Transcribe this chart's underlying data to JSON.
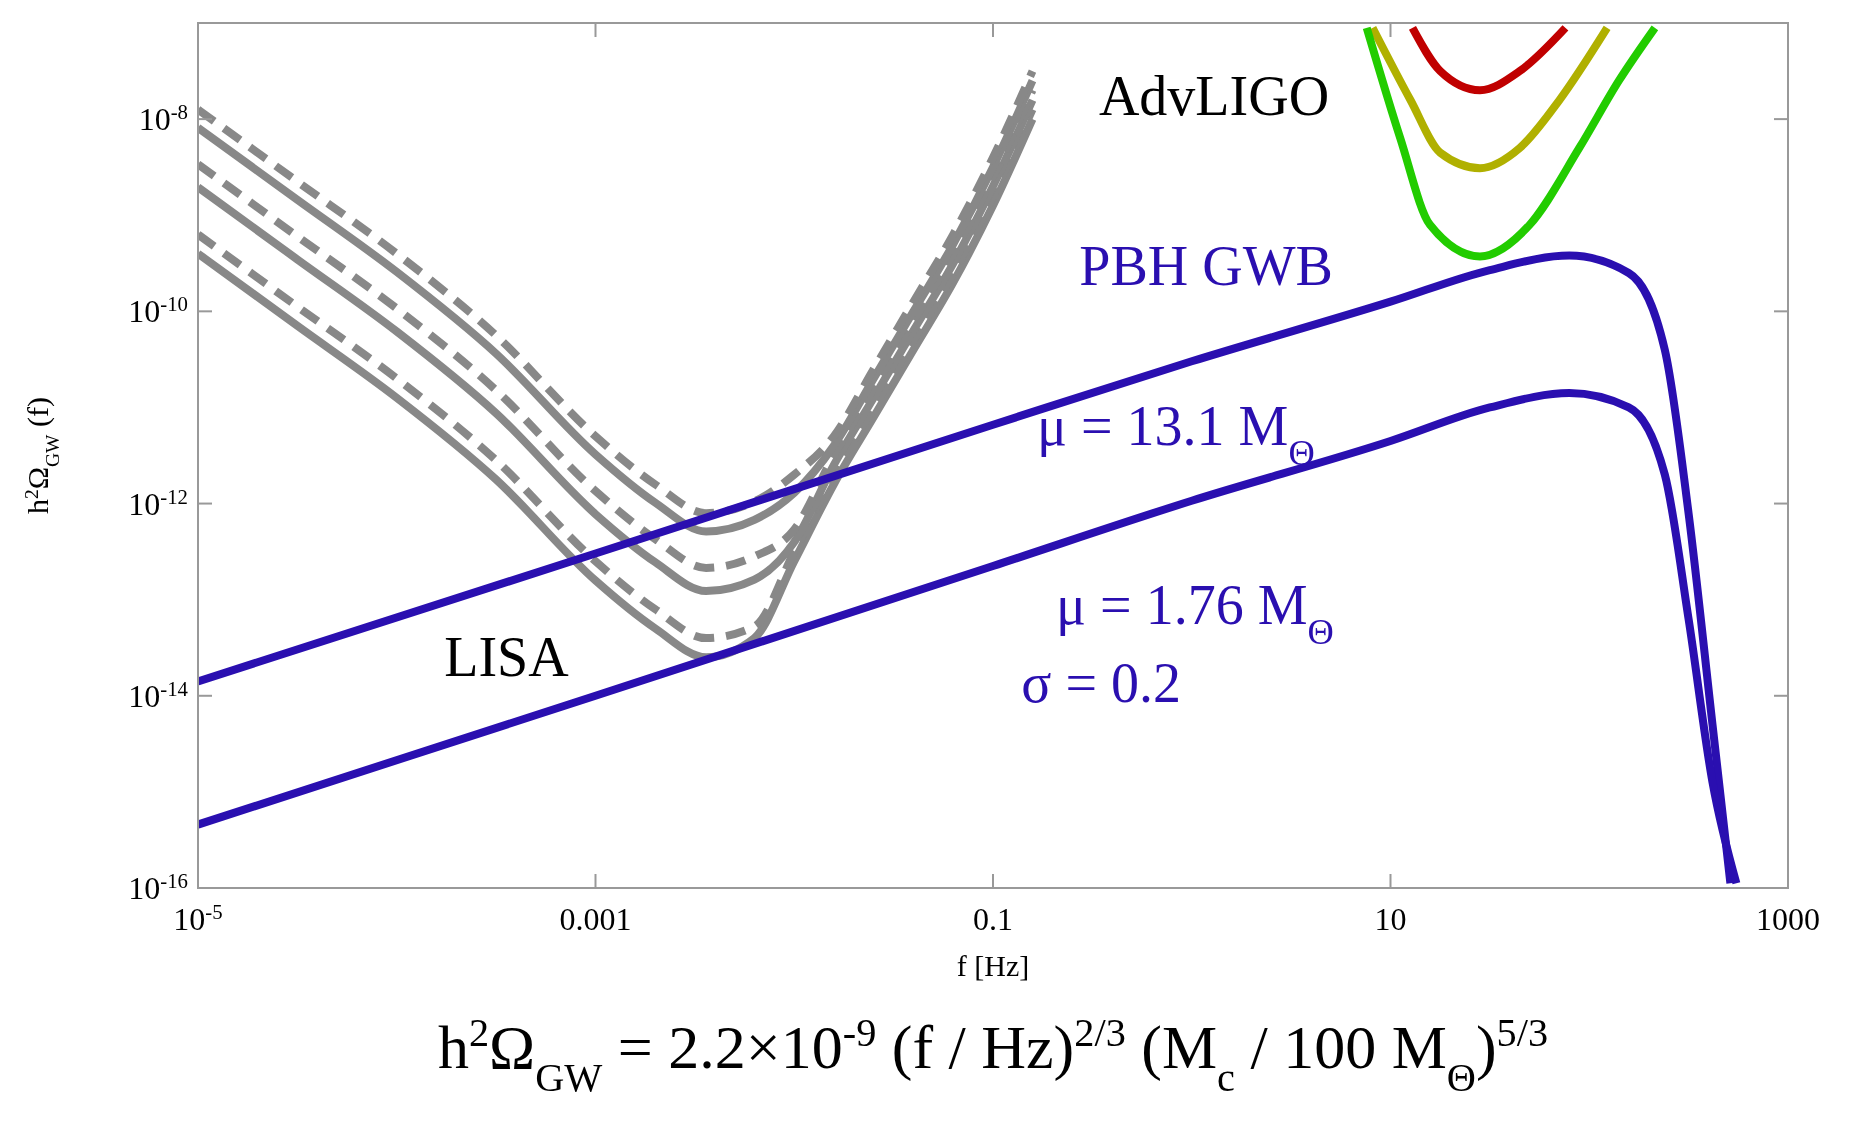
{
  "chart_data": {
    "type": "line",
    "xlabel": "f  [Hz]",
    "ylabel": "h$^{2}$Ω$_{GW}$ (f)",
    "log": "xy",
    "xlim": [
      1e-05,
      1000
    ],
    "ylim": [
      1e-16,
      1e-07
    ],
    "xticks": [
      {
        "value": 1e-05,
        "label": "10$^{-5}$"
      },
      0.001,
      0.1,
      10,
      1000
    ],
    "yticks": [
      {
        "value": 1e-16,
        "label": "10$^{-16}$"
      },
      {
        "value": 1e-14,
        "label": "10$^{-14}$"
      },
      {
        "value": 1e-12,
        "label": "10$^{-12}$"
      },
      {
        "value": 1e-10,
        "label": "10$^{-10}$"
      },
      {
        "value": 1e-08,
        "label": "10$^{-8}$"
      }
    ],
    "series": [
      {
        "color": "#888888",
        "line_style": "solid",
        "x": [
          1e-05,
          3.16e-05,
          0.0001,
          0.000316,
          0.001,
          0.002,
          0.0036,
          0.0063,
          0.01,
          0.0158,
          0.0251,
          0.0398,
          0.0631,
          0.1,
          0.158
        ],
        "values": [
          3.98e-10,
          7.08e-11,
          1.26e-11,
          1.78e-12,
          1.58e-13,
          5.01e-14,
          2.51e-14,
          3.98e-14,
          2.51e-13,
          1.58e-12,
          7.94e-12,
          3.98e-11,
          2e-10,
          1.26e-09,
          1e-08
        ]
      },
      {
        "color": "#888888",
        "line_style": "dashed",
        "x": [
          1e-05,
          3.16e-05,
          0.0001,
          0.000316,
          0.001,
          0.002,
          0.0036,
          0.0063,
          0.01,
          0.0158,
          0.0251,
          0.0398,
          0.0631,
          0.1,
          0.158
        ],
        "values": [
          6.31e-10,
          1.12e-10,
          2e-11,
          2.82e-12,
          2.51e-13,
          7.94e-14,
          3.98e-14,
          5.25e-14,
          3.16e-13,
          2e-12,
          1e-11,
          5.01e-11,
          2.51e-10,
          1.58e-09,
          1.26e-08
        ]
      },
      {
        "color": "#888888",
        "line_style": "solid",
        "x": [
          1e-05,
          3.16e-05,
          0.0001,
          0.000316,
          0.001,
          0.002,
          0.0036,
          0.0063,
          0.01,
          0.0158,
          0.0251,
          0.0398,
          0.0631,
          0.1,
          0.158
        ],
        "values": [
          1.95e-09,
          3.47e-10,
          6.17e-11,
          8.71e-12,
          7.76e-13,
          2.45e-13,
          1.23e-13,
          1.62e-13,
          3.98e-13,
          2.51e-12,
          1.26e-11,
          6.31e-11,
          3.16e-10,
          2e-09,
          1.58e-08
        ]
      },
      {
        "color": "#888888",
        "line_style": "dashed",
        "x": [
          1e-05,
          3.16e-05,
          0.0001,
          0.000316,
          0.001,
          0.002,
          0.0036,
          0.0063,
          0.01,
          0.0158,
          0.0251,
          0.0398,
          0.0631,
          0.1,
          0.158
        ],
        "values": [
          3.39e-09,
          6.03e-10,
          1.07e-10,
          1.51e-11,
          1.35e-12,
          4.27e-13,
          2.14e-13,
          2.82e-13,
          5.37e-13,
          3.16e-12,
          1.58e-11,
          7.94e-11,
          3.98e-10,
          2.51e-09,
          2e-08
        ]
      },
      {
        "color": "#888888",
        "line_style": "solid",
        "x": [
          1e-05,
          3.16e-05,
          0.0001,
          0.000316,
          0.001,
          0.002,
          0.0036,
          0.0063,
          0.01,
          0.0158,
          0.0251,
          0.0398,
          0.0631,
          0.1,
          0.158
        ],
        "values": [
          8.13e-09,
          1.45e-09,
          2.57e-10,
          3.63e-11,
          3.24e-12,
          1.02e-12,
          5.13e-13,
          6.76e-13,
          1.29e-12,
          3.98e-12,
          2e-11,
          1e-10,
          5.01e-10,
          3.16e-09,
          2.51e-08
        ]
      },
      {
        "color": "#888888",
        "line_style": "dashed",
        "x": [
          1e-05,
          3.16e-05,
          0.0001,
          0.000316,
          0.001,
          0.002,
          0.0036,
          0.0063,
          0.01,
          0.0158,
          0.0251,
          0.0398,
          0.0631,
          0.1,
          0.158
        ],
        "values": [
          1.26e-08,
          2.24e-09,
          3.98e-10,
          5.62e-11,
          5.01e-12,
          1.58e-12,
          7.94e-13,
          1.05e-12,
          2e-12,
          5.01e-12,
          2.51e-11,
          1.26e-10,
          6.31e-10,
          3.98e-09,
          3.16e-08
        ]
      },
      {
        "color": "#2a0fb0",
        "line_style": "solid",
        "x": [
          1e-05,
          0.001,
          0.1,
          1,
          10,
          31.6,
          79.4,
          158,
          240,
          316,
          417,
          513
        ],
        "values": [
          1.41e-14,
          3.02e-13,
          6.61e-12,
          3.02e-11,
          1.26e-10,
          2.69e-10,
          3.8e-10,
          2.51e-10,
          3.98e-11,
          7.94e-13,
          5.01e-15,
          1.12e-16
        ]
      },
      {
        "color": "#2a0fb0",
        "line_style": "solid",
        "x": [
          1e-05,
          0.001,
          0.1,
          1,
          10,
          31.6,
          79.4,
          158,
          240,
          316,
          417,
          550
        ],
        "values": [
          4.57e-16,
          1e-14,
          2.24e-13,
          1.07e-12,
          4.47e-12,
          1e-11,
          1.41e-11,
          1e-11,
          2e-12,
          6.31e-14,
          1.26e-15,
          1.12e-16
        ]
      },
      {
        "color": "#c00000",
        "line_style": "solid",
        "x": [
          12.9,
          17.8,
          28.2,
          44.7,
          75.9
        ],
        "values": [
          8.9e-08,
          3.16e-08,
          2e-08,
          3.16e-08,
          8.9e-08
        ]
      },
      {
        "color": "#b0b000",
        "line_style": "solid",
        "x": [
          8.13,
          12.6,
          17.8,
          28.2,
          44.7,
          70.8,
          123
        ],
        "values": [
          8.9e-08,
          1.58e-08,
          4.47e-09,
          3.09e-09,
          5.01e-09,
          1.58e-08,
          8.9e-08
        ]
      },
      {
        "color": "#22cc00",
        "line_style": "solid",
        "x": [
          7.59,
          11.2,
          15.8,
          28.2,
          50.1,
          89.1,
          141,
          214
        ],
        "values": [
          8.9e-08,
          6.31e-09,
          7.94e-10,
          3.72e-10,
          7.94e-10,
          5.01e-09,
          2.51e-08,
          8.9e-08
        ]
      }
    ],
    "annotations": [
      "AdvLIGO",
      "LISA",
      "PBH  GWB",
      "μ = 13.1 M$_{Θ}$",
      "μ = 1.76 M$_{Θ}$",
      "σ = 0.2",
      "h$^{2}$Ω$_{GW}$ = 2.2×10$^{-9}$ (f / Hz)$^{2/3}$ (M$_{c}$ / 100 M$_{Θ}$)$^{5/3}$"
    ]
  }
}
